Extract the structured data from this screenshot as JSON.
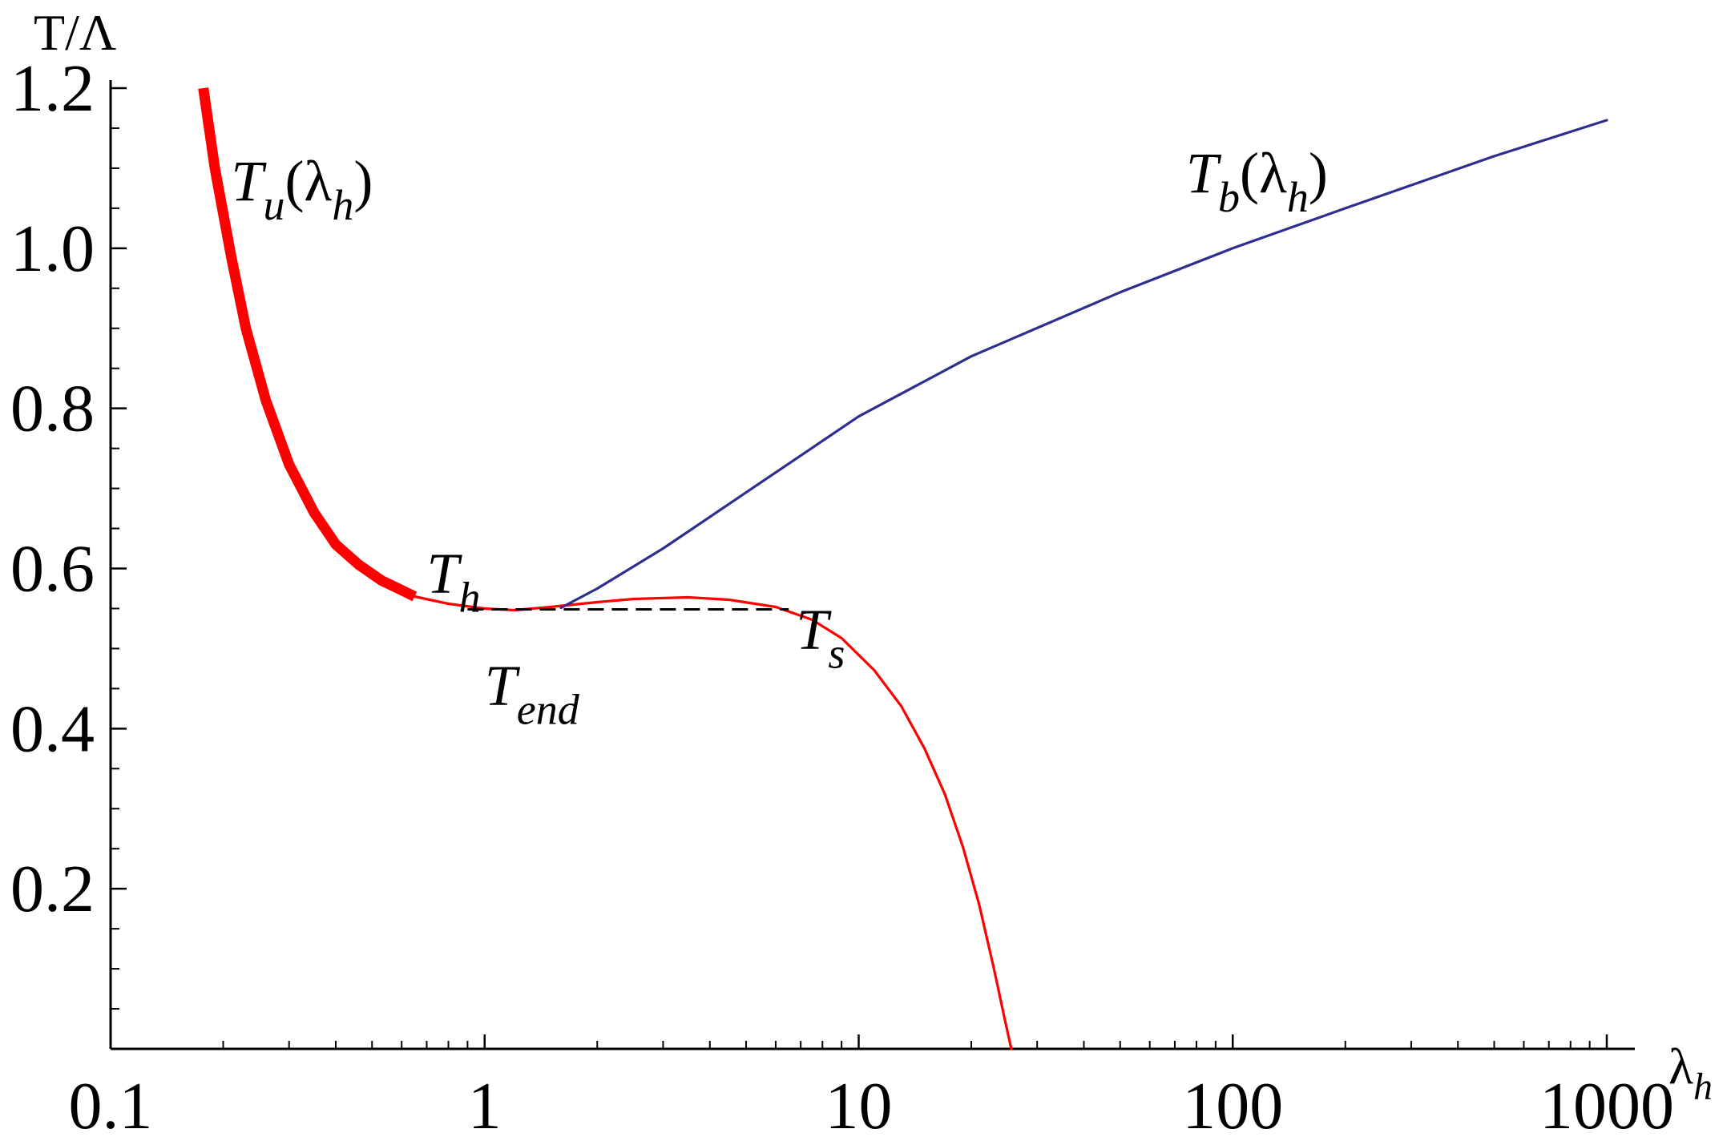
{
  "chart_data": {
    "type": "line",
    "title": "",
    "xlabel": "λ",
    "xlabel_sub": "h",
    "ylabel": "T/Λ",
    "xscale": "log",
    "xlim": [
      0.1,
      1000
    ],
    "ylim": [
      0,
      1.2
    ],
    "grid": false,
    "x_ticks": [
      {
        "value": 0.1,
        "label": "0.1"
      },
      {
        "value": 1,
        "label": "1"
      },
      {
        "value": 10,
        "label": "10"
      },
      {
        "value": 100,
        "label": "100"
      },
      {
        "value": 1000,
        "label": "1000"
      }
    ],
    "y_ticks": [
      {
        "value": 0.2,
        "label": "0.2"
      },
      {
        "value": 0.4,
        "label": "0.4"
      },
      {
        "value": 0.6,
        "label": "0.6"
      },
      {
        "value": 0.8,
        "label": "0.8"
      },
      {
        "value": 1.0,
        "label": "1.0"
      },
      {
        "value": 1.2,
        "label": "1.2"
      }
    ],
    "series": [
      {
        "key": "Tu-thick",
        "color": "#ff0000",
        "style": "thick",
        "x": [
          0.177,
          0.19,
          0.21,
          0.23,
          0.26,
          0.3,
          0.35,
          0.4,
          0.46,
          0.53,
          0.6,
          0.65
        ],
        "y": [
          1.2,
          1.1,
          0.99,
          0.9,
          0.81,
          0.73,
          0.67,
          0.63,
          0.605,
          0.585,
          0.573,
          0.565
        ]
      },
      {
        "key": "Tu-thin",
        "color": "#ff0000",
        "style": "thin",
        "x": [
          0.65,
          0.8,
          1.0,
          1.2,
          1.5,
          2.0,
          2.5,
          3.5,
          4.5,
          6.0,
          7.5,
          9.0,
          11.0,
          13.0,
          15.0,
          17.0,
          19.0,
          21.0,
          23.0,
          24.5,
          25.3,
          25.6
        ],
        "y": [
          0.565,
          0.556,
          0.55,
          0.548,
          0.552,
          0.558,
          0.562,
          0.564,
          0.561,
          0.552,
          0.536,
          0.513,
          0.473,
          0.428,
          0.375,
          0.318,
          0.252,
          0.18,
          0.1,
          0.04,
          0.01,
          0.0
        ]
      },
      {
        "key": "Tb",
        "color": "#2e2e8f",
        "style": "thin",
        "x": [
          1.6,
          2.0,
          3.0,
          5.0,
          10.0,
          20.0,
          50.0,
          100.0,
          200.0,
          500.0,
          1000.0
        ],
        "y": [
          0.551,
          0.575,
          0.625,
          0.695,
          0.79,
          0.865,
          0.945,
          1.0,
          1.05,
          1.115,
          1.16
        ]
      },
      {
        "key": "Ts-line",
        "color": "#000000",
        "style": "dashed",
        "x": [
          0.9,
          6.5
        ],
        "y": [
          0.549,
          0.549
        ]
      }
    ],
    "annotations": [
      {
        "key": "tu",
        "x": 0.21,
        "y": 1.06,
        "main": "T",
        "sub": "u",
        "rest": "(λ",
        "sub2": "h",
        "tail": ")"
      },
      {
        "key": "tb",
        "x": 75,
        "y": 1.07,
        "main": "T",
        "sub": "b",
        "rest": "(λ",
        "sub2": "h",
        "tail": ")"
      },
      {
        "key": "th",
        "x": 0.7,
        "y": 0.57,
        "main": "T",
        "sub": "h",
        "rest": "",
        "sub2": "",
        "tail": ""
      },
      {
        "key": "tend",
        "x": 1.0,
        "y": 0.43,
        "main": "T",
        "sub": "end",
        "rest": "",
        "sub2": "",
        "tail": ""
      },
      {
        "key": "ts",
        "x": 6.8,
        "y": 0.5,
        "main": "T",
        "sub": "s",
        "rest": "",
        "sub2": "",
        "tail": ""
      }
    ]
  }
}
